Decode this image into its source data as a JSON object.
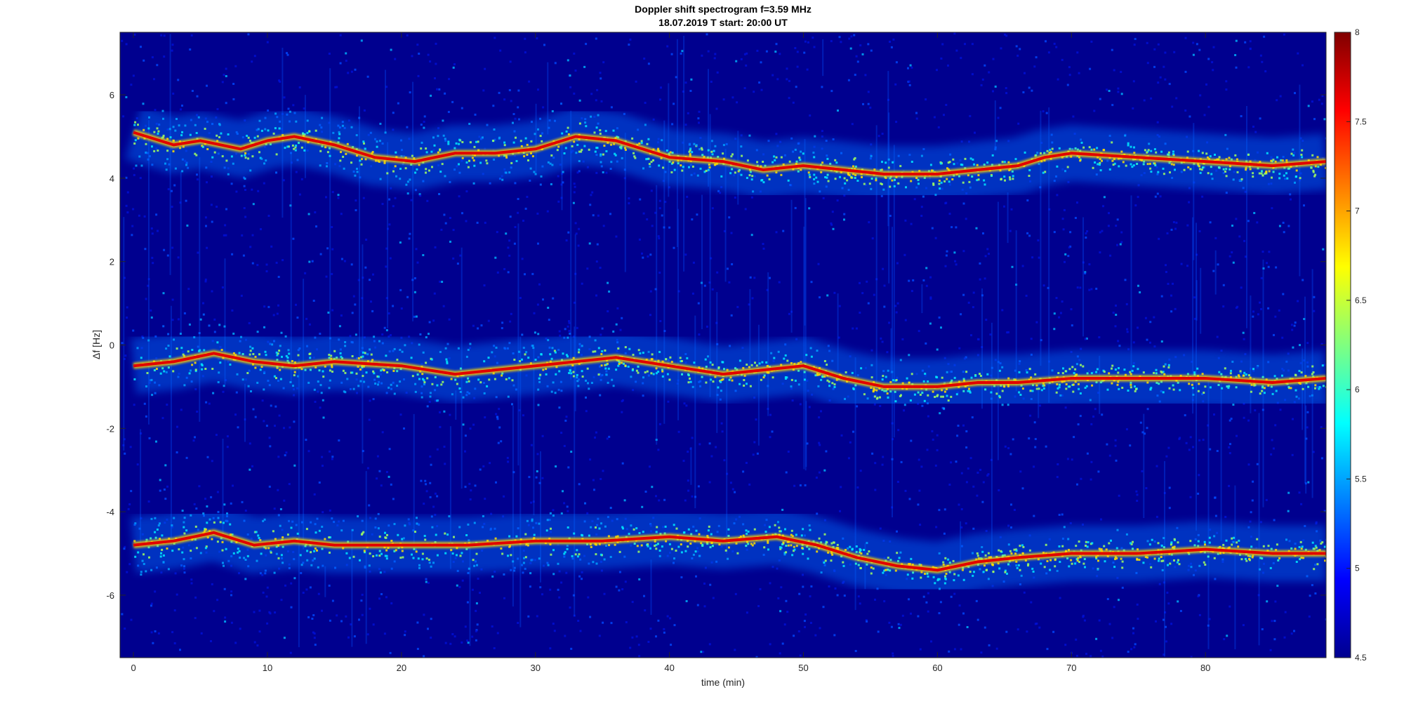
{
  "chart_data": {
    "type": "heatmap",
    "title": "Doppler shift spectrogram f=3.59 MHz",
    "subtitle": "18.07.2019    T start: 20:00 UT",
    "xlabel": "time (min)",
    "ylabel": "Δf [Hz]",
    "xlim": [
      -1,
      89
    ],
    "ylim": [
      -7.5,
      7.5
    ],
    "xticks": [
      0,
      10,
      20,
      30,
      40,
      50,
      60,
      70,
      80
    ],
    "yticks": [
      6,
      4,
      2,
      0,
      -2,
      -4,
      -6
    ],
    "colormap": "jet",
    "colorbar": {
      "range": [
        4.5,
        8
      ],
      "ticks": [
        8,
        7.5,
        7,
        6.5,
        6,
        5.5,
        5,
        4.5
      ]
    },
    "background_color": "#00008f",
    "grid": false,
    "traces": [
      {
        "name_visible": false,
        "points": [
          [
            0,
            5.1
          ],
          [
            3,
            4.8
          ],
          [
            5,
            4.9
          ],
          [
            8,
            4.7
          ],
          [
            10,
            4.9
          ],
          [
            12,
            5.0
          ],
          [
            15,
            4.8
          ],
          [
            18,
            4.5
          ],
          [
            21,
            4.4
          ],
          [
            24,
            4.6
          ],
          [
            27,
            4.6
          ],
          [
            30,
            4.7
          ],
          [
            33,
            5.0
          ],
          [
            36,
            4.9
          ],
          [
            40,
            4.5
          ],
          [
            44,
            4.4
          ],
          [
            47,
            4.2
          ],
          [
            50,
            4.3
          ],
          [
            53,
            4.2
          ],
          [
            56,
            4.1
          ],
          [
            60,
            4.1
          ],
          [
            63,
            4.2
          ],
          [
            66,
            4.3
          ],
          [
            68,
            4.5
          ],
          [
            70,
            4.6
          ],
          [
            75,
            4.5
          ],
          [
            80,
            4.4
          ],
          [
            85,
            4.3
          ],
          [
            89,
            4.4
          ]
        ]
      },
      {
        "name_visible": false,
        "points": [
          [
            0,
            -0.5
          ],
          [
            3,
            -0.4
          ],
          [
            6,
            -0.2
          ],
          [
            9,
            -0.4
          ],
          [
            12,
            -0.5
          ],
          [
            15,
            -0.4
          ],
          [
            20,
            -0.5
          ],
          [
            24,
            -0.7
          ],
          [
            27,
            -0.6
          ],
          [
            30,
            -0.5
          ],
          [
            33,
            -0.4
          ],
          [
            36,
            -0.3
          ],
          [
            40,
            -0.5
          ],
          [
            44,
            -0.7
          ],
          [
            47,
            -0.6
          ],
          [
            50,
            -0.5
          ],
          [
            53,
            -0.8
          ],
          [
            56,
            -1.0
          ],
          [
            60,
            -1.0
          ],
          [
            63,
            -0.9
          ],
          [
            66,
            -0.9
          ],
          [
            70,
            -0.8
          ],
          [
            75,
            -0.8
          ],
          [
            80,
            -0.8
          ],
          [
            85,
            -0.9
          ],
          [
            89,
            -0.8
          ]
        ]
      },
      {
        "name_visible": false,
        "points": [
          [
            0,
            -4.8
          ],
          [
            3,
            -4.7
          ],
          [
            6,
            -4.5
          ],
          [
            9,
            -4.8
          ],
          [
            12,
            -4.7
          ],
          [
            15,
            -4.8
          ],
          [
            20,
            -4.8
          ],
          [
            25,
            -4.8
          ],
          [
            30,
            -4.7
          ],
          [
            35,
            -4.7
          ],
          [
            40,
            -4.6
          ],
          [
            44,
            -4.7
          ],
          [
            48,
            -4.6
          ],
          [
            51,
            -4.8
          ],
          [
            54,
            -5.1
          ],
          [
            57,
            -5.3
          ],
          [
            60,
            -5.4
          ],
          [
            63,
            -5.2
          ],
          [
            66,
            -5.1
          ],
          [
            70,
            -5.0
          ],
          [
            75,
            -5.0
          ],
          [
            80,
            -4.9
          ],
          [
            85,
            -5.0
          ],
          [
            89,
            -5.0
          ]
        ]
      }
    ]
  }
}
